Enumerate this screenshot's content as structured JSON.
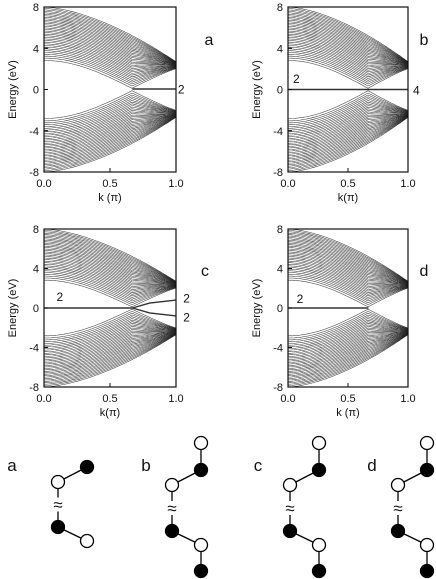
{
  "chart_data": [
    {
      "panel": "a",
      "type": "line",
      "ylabel": "Energy (eV)",
      "xlabel": "k (π)",
      "xlim": [
        0,
        1
      ],
      "ylim": [
        -8,
        8
      ],
      "xticks": [
        "0.0",
        "0.5",
        "1.0"
      ],
      "yticks": [
        "8",
        "4",
        "0",
        "-4",
        "-8"
      ],
      "band_edges": {
        "upper_top": {
          "x": [
            0,
            0.67,
            1.0
          ],
          "y": [
            8,
            4.7,
            2.7
          ]
        },
        "upper_bottom": {
          "x": [
            0,
            0.67,
            1.0
          ],
          "y": [
            2.7,
            0.15,
            2.7
          ]
        }
      },
      "edge_states": [
        {
          "x": [
            0.67,
            1.0
          ],
          "y": [
            0.05,
            0.05
          ]
        }
      ],
      "annotations": [
        "2"
      ]
    },
    {
      "panel": "b",
      "type": "line",
      "ylabel": "Energy (eV)",
      "xlabel": "k(π)",
      "xlim": [
        0,
        1
      ],
      "ylim": [
        -8,
        8
      ],
      "xticks": [
        "0.0",
        "0.5",
        "1.0"
      ],
      "yticks": [
        "8",
        "4",
        "0",
        "-4",
        "-8"
      ],
      "band_edges": {
        "upper_top": {
          "x": [
            0,
            0.67,
            1.0
          ],
          "y": [
            8,
            4.7,
            2.7
          ]
        },
        "upper_bottom": {
          "x": [
            0,
            0.67,
            1.0
          ],
          "y": [
            2.7,
            0.15,
            2.7
          ]
        }
      },
      "edge_states": [
        {
          "x": [
            0,
            1.0
          ],
          "y": [
            0,
            0
          ]
        }
      ],
      "annotations": [
        "2",
        "4"
      ]
    },
    {
      "panel": "c",
      "type": "line",
      "ylabel": "Energy (eV)",
      "xlabel": "k(π)",
      "xlim": [
        0,
        1
      ],
      "ylim": [
        -8,
        8
      ],
      "xticks": [
        "0.0",
        "0.5",
        "1.0"
      ],
      "yticks": [
        "8",
        "4",
        "0",
        "-4",
        "-8"
      ],
      "band_edges": {
        "upper_top": {
          "x": [
            0,
            0.67,
            1.0
          ],
          "y": [
            8,
            4.7,
            2.7
          ]
        },
        "upper_bottom": {
          "x": [
            0,
            0.67,
            1.0
          ],
          "y": [
            2.7,
            0.15,
            2.7
          ]
        }
      },
      "edge_states": [
        {
          "x": [
            0,
            0.67
          ],
          "y": [
            0,
            0
          ]
        },
        {
          "x": [
            0.67,
            0.8,
            1.0
          ],
          "y": [
            0,
            0.5,
            0.8
          ]
        },
        {
          "x": [
            0.67,
            0.8,
            1.0
          ],
          "y": [
            0,
            -0.5,
            -0.8
          ]
        }
      ],
      "annotations": [
        "2",
        "2",
        "2"
      ]
    },
    {
      "panel": "d",
      "type": "line",
      "ylabel": "Energy (eV)",
      "xlabel": "k (π)",
      "xlim": [
        0,
        1
      ],
      "ylim": [
        -8,
        8
      ],
      "xticks": [
        "0.0",
        "0.5",
        "1.0"
      ],
      "yticks": [
        "8",
        "4",
        "0",
        "-4",
        "-8"
      ],
      "band_edges": {
        "upper_top": {
          "x": [
            0,
            0.67,
            1.0
          ],
          "y": [
            8,
            4.7,
            2.7
          ]
        },
        "upper_bottom": {
          "x": [
            0,
            0.67,
            1.0
          ],
          "y": [
            2.7,
            0.15,
            2.7
          ]
        }
      },
      "edge_states": [
        {
          "x": [
            0,
            0.67
          ],
          "y": [
            0,
            0
          ]
        }
      ],
      "annotations": [
        "2"
      ]
    }
  ],
  "structures": [
    {
      "label": "a",
      "top_sites": [
        "open",
        "filled"
      ],
      "bottom_sites": [
        "filled",
        "open"
      ]
    },
    {
      "label": "b",
      "top_sites": [
        "open",
        "filled",
        "open"
      ],
      "bottom_sites": [
        "filled",
        "open",
        "filled"
      ]
    },
    {
      "label": "c",
      "top_sites": [
        "open",
        "filled",
        "open"
      ],
      "bottom_sites": [
        "filled",
        "open",
        "filled"
      ]
    },
    {
      "label": "d",
      "top_sites": [
        "open",
        "filled",
        "open"
      ],
      "bottom_sites": [
        "filled",
        "open",
        "filled"
      ]
    }
  ],
  "break_symbol": "≈",
  "colors": {
    "band": "#1a1a1a",
    "axis": "#111111",
    "open_site": "#ffffff",
    "filled_site": "#000000"
  }
}
